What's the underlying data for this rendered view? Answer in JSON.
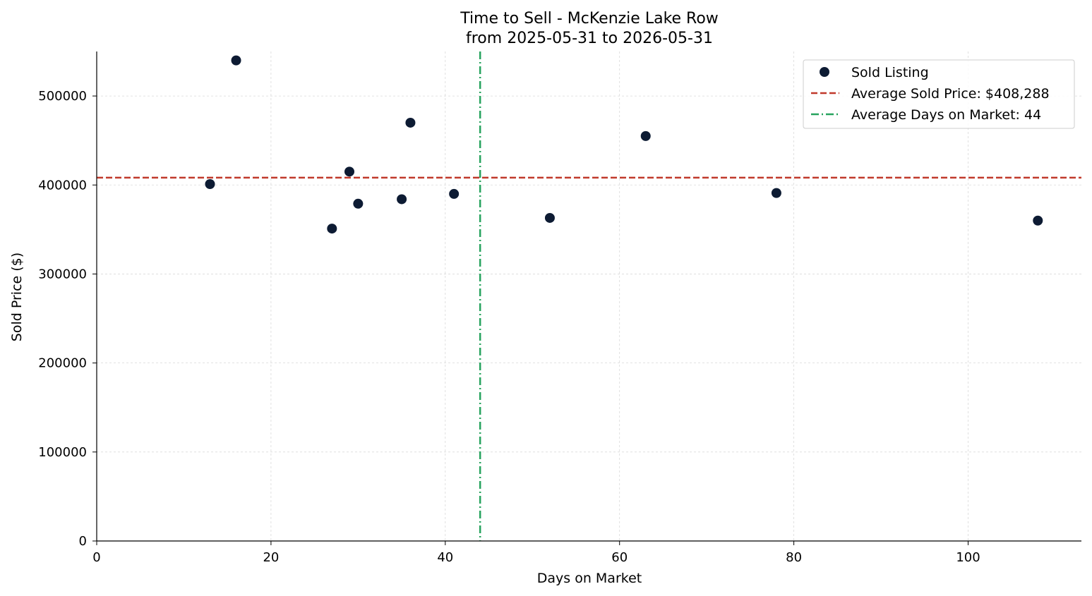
{
  "chart_data": {
    "type": "scatter",
    "title": [
      "Time to Sell - McKenzie Lake Row",
      "from 2025-05-31 to 2026-05-31"
    ],
    "xlabel": "Days on Market",
    "ylabel": "Sold Price ($)",
    "xlim": [
      0,
      113
    ],
    "ylim": [
      0,
      550000
    ],
    "xticks": [
      0,
      20,
      40,
      60,
      80,
      100
    ],
    "yticks": [
      0,
      100000,
      200000,
      300000,
      400000,
      500000
    ],
    "grid": true,
    "legend_position": "top-right",
    "series": [
      {
        "name": "Sold Listing",
        "color": "#0d1b33",
        "points": [
          {
            "x": 13,
            "y": 401000
          },
          {
            "x": 16,
            "y": 540000
          },
          {
            "x": 27,
            "y": 351000
          },
          {
            "x": 29,
            "y": 415000
          },
          {
            "x": 30,
            "y": 379000
          },
          {
            "x": 35,
            "y": 384000
          },
          {
            "x": 36,
            "y": 470000
          },
          {
            "x": 41,
            "y": 390000
          },
          {
            "x": 52,
            "y": 363000
          },
          {
            "x": 63,
            "y": 455000
          },
          {
            "x": 78,
            "y": 391000
          },
          {
            "x": 108,
            "y": 360000
          }
        ]
      }
    ],
    "reference_lines": [
      {
        "name": "Average Sold Price: $408,288",
        "orientation": "horizontal",
        "value": 408288,
        "color": "#c0392b",
        "style": "dashed"
      },
      {
        "name": "Average Days on Market: 44",
        "orientation": "vertical",
        "value": 44,
        "color": "#27a35e",
        "style": "dashdot"
      }
    ]
  }
}
